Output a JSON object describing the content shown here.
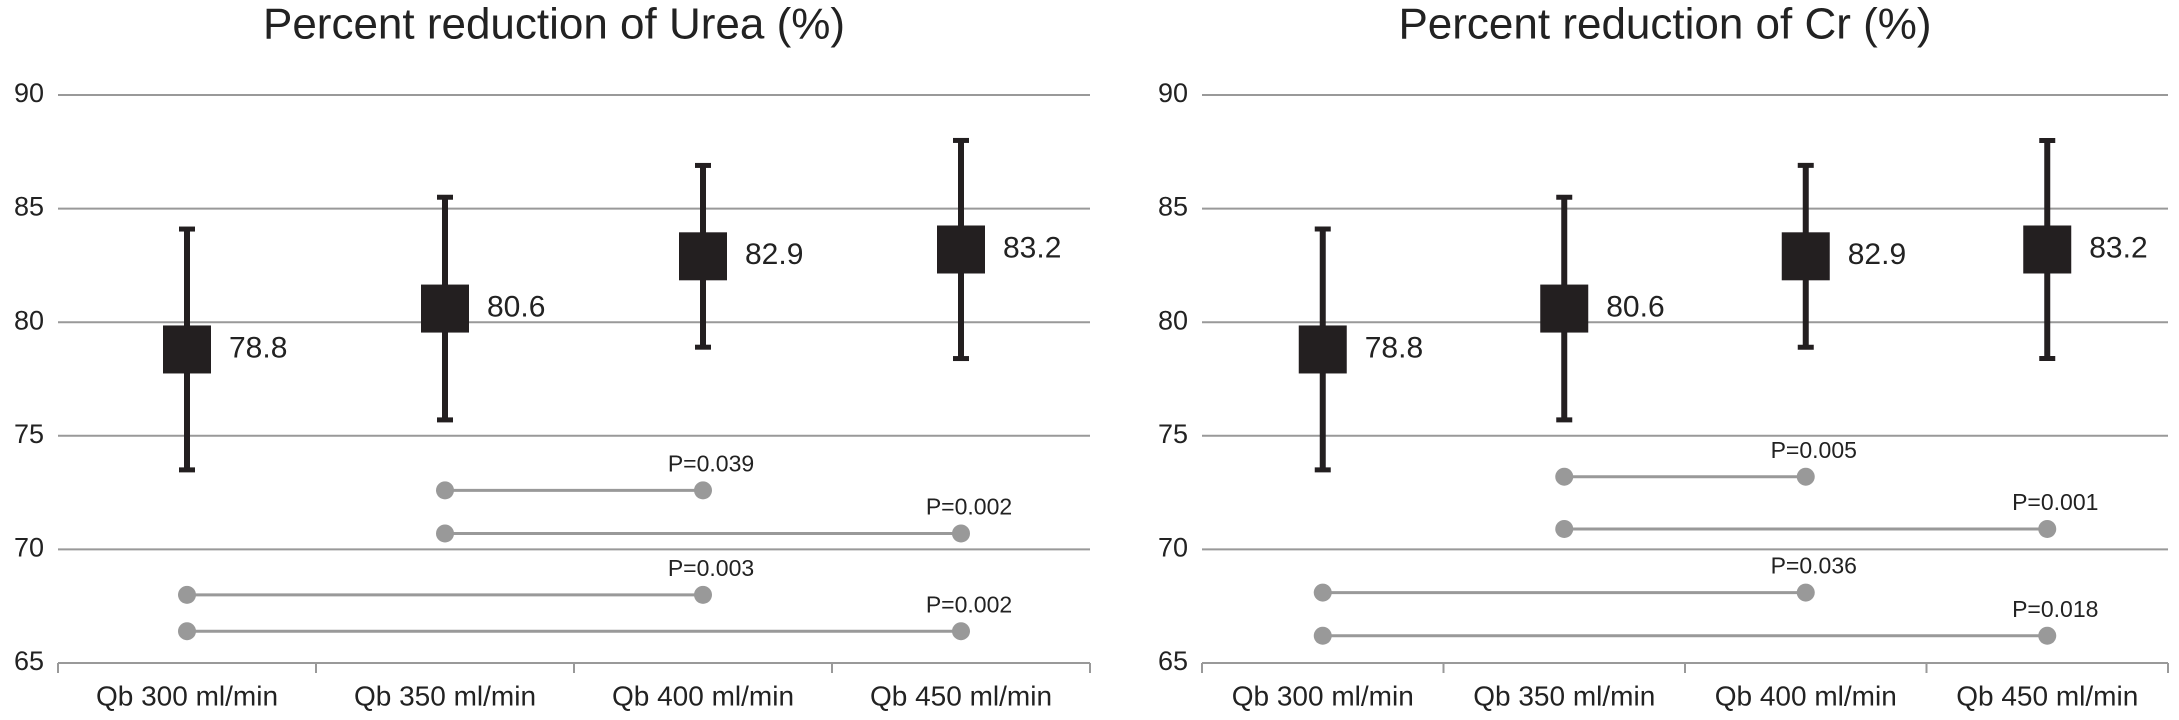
{
  "chart_data": [
    {
      "type": "errorbar",
      "title": "Percent reduction of Urea (%)",
      "categories": [
        "Qb 300 ml/min",
        "Qb 350 ml/min",
        "Qb 400 ml/min",
        "Qb 450 ml/min"
      ],
      "values": [
        78.8,
        80.6,
        82.9,
        83.2
      ],
      "low": [
        73.5,
        75.7,
        78.9,
        78.4
      ],
      "high": [
        84.1,
        85.5,
        86.9,
        88.0
      ],
      "color": "#231f20",
      "ylim": [
        65,
        90
      ],
      "yticks": [
        65,
        70,
        75,
        80,
        85,
        90
      ],
      "grid": true,
      "comparisons": [
        {
          "from": "Qb 350 ml/min",
          "to": "Qb 400 ml/min",
          "y": 72.6,
          "label": "P=0.039"
        },
        {
          "from": "Qb 350 ml/min",
          "to": "Qb 450 ml/min",
          "y": 70.7,
          "label": "P=0.002"
        },
        {
          "from": "Qb 300 ml/min",
          "to": "Qb 400 ml/min",
          "y": 68.0,
          "label": "P=0.003"
        },
        {
          "from": "Qb 300 ml/min",
          "to": "Qb 450 ml/min",
          "y": 66.4,
          "label": "P=0.002"
        }
      ],
      "comparison_color": "#999999"
    },
    {
      "type": "errorbar",
      "title": "Percent reduction of Cr (%)",
      "categories": [
        "Qb 300 ml/min",
        "Qb 350 ml/min",
        "Qb 400 ml/min",
        "Qb 450 ml/min"
      ],
      "values": [
        78.8,
        80.6,
        82.9,
        83.2
      ],
      "low": [
        73.5,
        75.7,
        78.9,
        78.4
      ],
      "high": [
        84.1,
        85.5,
        86.9,
        88.0
      ],
      "color": "#231f20",
      "ylim": [
        65,
        90
      ],
      "yticks": [
        65,
        70,
        75,
        80,
        85,
        90
      ],
      "grid": true,
      "comparisons": [
        {
          "from": "Qb 350 ml/min",
          "to": "Qb 400 ml/min",
          "y": 73.2,
          "label": "P=0.005"
        },
        {
          "from": "Qb 350 ml/min",
          "to": "Qb 450 ml/min",
          "y": 70.9,
          "label": "P=0.001"
        },
        {
          "from": "Qb 300 ml/min",
          "to": "Qb 400 ml/min",
          "y": 68.1,
          "label": "P=0.036"
        },
        {
          "from": "Qb 300 ml/min",
          "to": "Qb 450 ml/min",
          "y": 66.2,
          "label": "P=0.018"
        }
      ],
      "comparison_color": "#999999"
    }
  ]
}
